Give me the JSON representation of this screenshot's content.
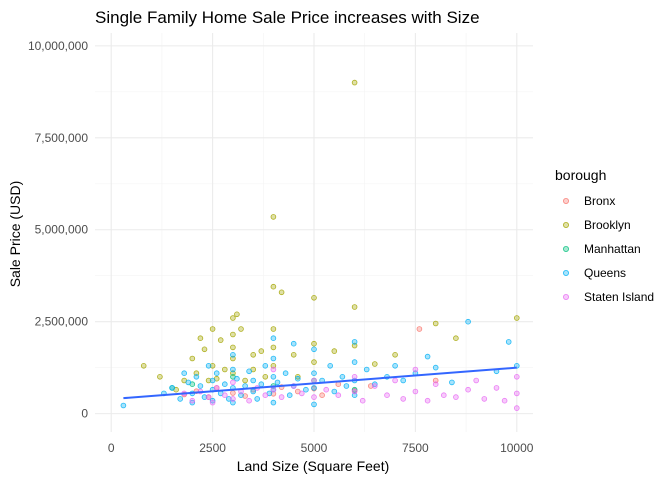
{
  "chart_data": {
    "type": "scatter",
    "title": "Single Family Home Sale Price increases with Size",
    "xlabel": "Land Size (Square Feet)",
    "ylabel": "Sale Price (USD)",
    "xlim": [
      -400,
      10400
    ],
    "ylim": [
      -500000,
      10350000
    ],
    "x_ticks": [
      0,
      2500,
      5000,
      7500,
      10000
    ],
    "x_tick_labels": [
      "0",
      "2500",
      "5000",
      "7500",
      "10000"
    ],
    "y_ticks": [
      0,
      2500000,
      5000000,
      7500000,
      10000000
    ],
    "y_tick_labels": [
      "0",
      "2,500,000",
      "5,000,000",
      "7,500,000",
      "10,000,000"
    ],
    "grid": true,
    "legend": {
      "title": "borough",
      "position": "right",
      "entries": [
        "Bronx",
        "Brooklyn",
        "Manhattan",
        "Queens",
        "Staten Island"
      ]
    },
    "colors": {
      "Bronx": "#F8766D",
      "Brooklyn": "#A3A500",
      "Manhattan": "#00BF7D",
      "Queens": "#00B0F6",
      "Staten Island": "#E76BF3",
      "trend": "#3366FF"
    },
    "trend_line": {
      "x": [
        300,
        10000
      ],
      "y": [
        420000,
        1250000
      ]
    },
    "series": [
      {
        "name": "Bronx",
        "points": [
          [
            1800,
            520000
          ],
          [
            2100,
            610000
          ],
          [
            2400,
            450000
          ],
          [
            2600,
            700000
          ],
          [
            3000,
            560000
          ],
          [
            3300,
            480000
          ],
          [
            3500,
            650000
          ],
          [
            4000,
            540000
          ],
          [
            4200,
            720000
          ],
          [
            4600,
            600000
          ],
          [
            5000,
            680000
          ],
          [
            5200,
            500000
          ],
          [
            5600,
            800000
          ],
          [
            6000,
            620000
          ],
          [
            6400,
            750000
          ],
          [
            7600,
            2300000
          ],
          [
            8000,
            900000
          ]
        ]
      },
      {
        "name": "Brooklyn",
        "points": [
          [
            800,
            1300000
          ],
          [
            1200,
            1000000
          ],
          [
            1600,
            650000
          ],
          [
            1800,
            900000
          ],
          [
            2000,
            1500000
          ],
          [
            2100,
            1100000
          ],
          [
            2200,
            2050000
          ],
          [
            2300,
            1750000
          ],
          [
            2400,
            900000
          ],
          [
            2500,
            2300000
          ],
          [
            2500,
            1300000
          ],
          [
            2600,
            950000
          ],
          [
            2700,
            2000000
          ],
          [
            2800,
            1200000
          ],
          [
            3000,
            2600000
          ],
          [
            3000,
            2150000
          ],
          [
            3000,
            1800000
          ],
          [
            3000,
            1500000
          ],
          [
            3000,
            1100000
          ],
          [
            3100,
            2700000
          ],
          [
            3200,
            2300000
          ],
          [
            3300,
            900000
          ],
          [
            3500,
            1600000
          ],
          [
            3500,
            1200000
          ],
          [
            3700,
            1700000
          ],
          [
            3800,
            1000000
          ],
          [
            4000,
            5350000
          ],
          [
            4000,
            3450000
          ],
          [
            4000,
            2300000
          ],
          [
            4000,
            1800000
          ],
          [
            4000,
            1300000
          ],
          [
            4200,
            3300000
          ],
          [
            4500,
            1600000
          ],
          [
            4600,
            1000000
          ],
          [
            5000,
            3150000
          ],
          [
            5000,
            1900000
          ],
          [
            5000,
            1400000
          ],
          [
            5500,
            1700000
          ],
          [
            6000,
            9000000
          ],
          [
            6000,
            2900000
          ],
          [
            6000,
            1850000
          ],
          [
            6500,
            1350000
          ],
          [
            7000,
            1600000
          ],
          [
            8000,
            2450000
          ],
          [
            8500,
            2050000
          ],
          [
            10000,
            2600000
          ]
        ]
      },
      {
        "name": "Manhattan",
        "points": [
          [
            1500,
            700000
          ],
          [
            2000,
            800000
          ],
          [
            3000,
            1000000
          ],
          [
            4000,
            750000
          ],
          [
            5000,
            900000
          ],
          [
            6000,
            650000
          ]
        ]
      },
      {
        "name": "Queens",
        "points": [
          [
            300,
            220000
          ],
          [
            1300,
            550000
          ],
          [
            1500,
            700000
          ],
          [
            1700,
            400000
          ],
          [
            1800,
            1100000
          ],
          [
            1900,
            850000
          ],
          [
            2000,
            550000
          ],
          [
            2000,
            300000
          ],
          [
            2100,
            1000000
          ],
          [
            2200,
            750000
          ],
          [
            2300,
            450000
          ],
          [
            2400,
            1300000
          ],
          [
            2500,
            650000
          ],
          [
            2500,
            900000
          ],
          [
            2500,
            350000
          ],
          [
            2600,
            1100000
          ],
          [
            2700,
            550000
          ],
          [
            2800,
            800000
          ],
          [
            2900,
            400000
          ],
          [
            3000,
            1600000
          ],
          [
            3000,
            1200000
          ],
          [
            3000,
            700000
          ],
          [
            3000,
            300000
          ],
          [
            3100,
            950000
          ],
          [
            3200,
            500000
          ],
          [
            3300,
            750000
          ],
          [
            3400,
            1150000
          ],
          [
            3500,
            600000
          ],
          [
            3500,
            900000
          ],
          [
            3600,
            400000
          ],
          [
            3700,
            800000
          ],
          [
            3800,
            1300000
          ],
          [
            3900,
            550000
          ],
          [
            4000,
            2050000
          ],
          [
            4000,
            1500000
          ],
          [
            4000,
            1000000
          ],
          [
            4000,
            650000
          ],
          [
            4000,
            300000
          ],
          [
            4100,
            850000
          ],
          [
            4300,
            1100000
          ],
          [
            4400,
            500000
          ],
          [
            4500,
            1900000
          ],
          [
            4500,
            750000
          ],
          [
            4600,
            950000
          ],
          [
            4800,
            650000
          ],
          [
            5000,
            1750000
          ],
          [
            5000,
            1100000
          ],
          [
            5000,
            700000
          ],
          [
            5000,
            250000
          ],
          [
            5200,
            900000
          ],
          [
            5400,
            1300000
          ],
          [
            5500,
            600000
          ],
          [
            5700,
            1000000
          ],
          [
            5800,
            750000
          ],
          [
            6000,
            1950000
          ],
          [
            6000,
            1400000
          ],
          [
            6000,
            900000
          ],
          [
            6000,
            500000
          ],
          [
            6300,
            1200000
          ],
          [
            6500,
            800000
          ],
          [
            6800,
            1000000
          ],
          [
            7000,
            1300000
          ],
          [
            7200,
            900000
          ],
          [
            7500,
            1100000
          ],
          [
            7800,
            1550000
          ],
          [
            8000,
            1250000
          ],
          [
            8400,
            850000
          ],
          [
            8800,
            2500000
          ],
          [
            9500,
            1150000
          ],
          [
            9800,
            1950000
          ],
          [
            10000,
            1300000
          ]
        ]
      },
      {
        "name": "Staten Island",
        "points": [
          [
            1800,
            550000
          ],
          [
            2000,
            350000
          ],
          [
            2200,
            600000
          ],
          [
            2400,
            450000
          ],
          [
            2500,
            300000
          ],
          [
            2600,
            700000
          ],
          [
            2800,
            500000
          ],
          [
            3000,
            850000
          ],
          [
            3000,
            400000
          ],
          [
            3200,
            600000
          ],
          [
            3400,
            350000
          ],
          [
            3600,
            700000
          ],
          [
            3800,
            500000
          ],
          [
            4000,
            1200000
          ],
          [
            4000,
            650000
          ],
          [
            4200,
            450000
          ],
          [
            4500,
            750000
          ],
          [
            4700,
            550000
          ],
          [
            5000,
            900000
          ],
          [
            5000,
            450000
          ],
          [
            5300,
            650000
          ],
          [
            5600,
            500000
          ],
          [
            6000,
            1000000
          ],
          [
            6000,
            600000
          ],
          [
            6200,
            350000
          ],
          [
            6500,
            750000
          ],
          [
            6800,
            500000
          ],
          [
            7000,
            900000
          ],
          [
            7200,
            400000
          ],
          [
            7500,
            600000
          ],
          [
            7500,
            1200000
          ],
          [
            7800,
            350000
          ],
          [
            8000,
            800000
          ],
          [
            8200,
            500000
          ],
          [
            8500,
            450000
          ],
          [
            8800,
            650000
          ],
          [
            9000,
            900000
          ],
          [
            9200,
            400000
          ],
          [
            9500,
            700000
          ],
          [
            9700,
            350000
          ],
          [
            10000,
            550000
          ],
          [
            10000,
            1000000
          ],
          [
            10000,
            150000
          ]
        ]
      }
    ]
  }
}
